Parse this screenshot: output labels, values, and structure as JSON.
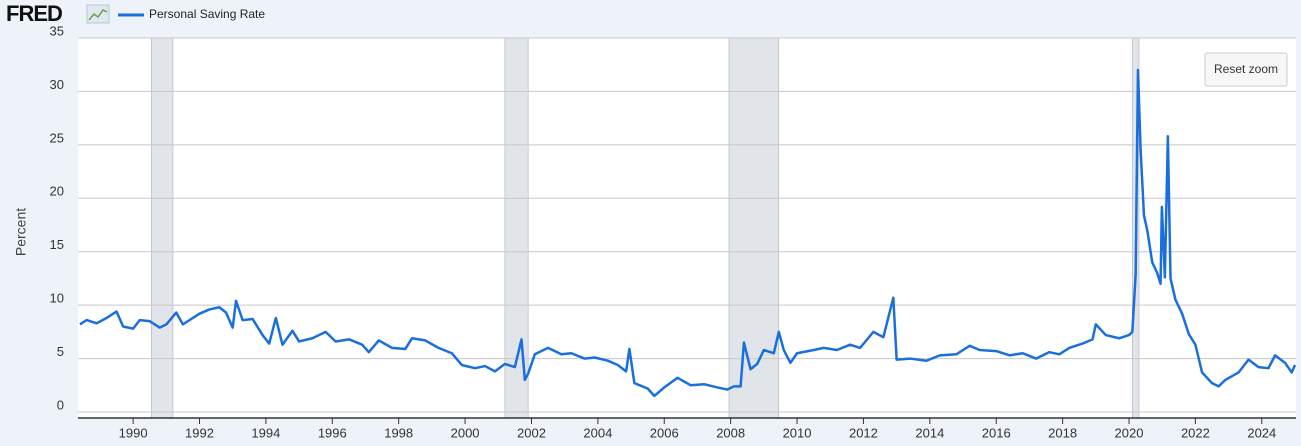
{
  "logo": "FRED",
  "button": "Reset zoom",
  "chart_data": {
    "type": "line",
    "ylabel": "Percent",
    "xlim": [
      1988.34,
      2025.03
    ],
    "ylim": [
      0,
      35
    ],
    "xticks": [
      1990,
      1992,
      1994,
      1996,
      1998,
      2000,
      2002,
      2004,
      2006,
      2008,
      2010,
      2012,
      2014,
      2016,
      2018,
      2020,
      2022,
      2024
    ],
    "yticks": [
      0,
      5,
      10,
      15,
      20,
      25,
      30,
      35
    ],
    "grid": true,
    "recessions": [
      [
        1990.55,
        1991.2
      ],
      [
        2001.2,
        2001.9
      ],
      [
        2007.95,
        2009.45
      ],
      [
        2020.1,
        2020.3
      ]
    ],
    "recession_color": "#e1e5ea",
    "x": [
      1988.4,
      1988.6,
      1988.9,
      1989.2,
      1989.5,
      1989.7,
      1990.0,
      1990.2,
      1990.5,
      1990.8,
      1991.0,
      1991.3,
      1991.5,
      1991.8,
      1992.0,
      1992.3,
      1992.6,
      1992.8,
      1993.0,
      1993.1,
      1993.3,
      1993.6,
      1993.9,
      1994.1,
      1994.3,
      1994.5,
      1994.8,
      1995.0,
      1995.4,
      1995.8,
      1996.1,
      1996.5,
      1996.9,
      1997.1,
      1997.4,
      1997.8,
      1998.2,
      1998.4,
      1998.8,
      1999.2,
      1999.6,
      1999.9,
      2000.3,
      2000.6,
      2000.9,
      2001.2,
      2001.5,
      2001.7,
      2001.8,
      2001.9,
      2002.1,
      2002.5,
      2002.9,
      2003.2,
      2003.6,
      2003.9,
      2004.3,
      2004.6,
      2004.85,
      2004.95,
      2005.1,
      2005.5,
      2005.7,
      2006.0,
      2006.4,
      2006.8,
      2007.2,
      2007.6,
      2007.9,
      2008.1,
      2008.3,
      2008.4,
      2008.6,
      2008.8,
      2009.0,
      2009.3,
      2009.45,
      2009.6,
      2009.8,
      2010.0,
      2010.5,
      2010.8,
      2011.2,
      2011.6,
      2011.9,
      2012.3,
      2012.6,
      2012.9,
      2013.0,
      2013.4,
      2013.9,
      2014.3,
      2014.8,
      2015.2,
      2015.5,
      2016.0,
      2016.4,
      2016.8,
      2017.2,
      2017.6,
      2017.9,
      2018.2,
      2018.6,
      2018.9,
      2019.0,
      2019.3,
      2019.7,
      2020.0,
      2020.1,
      2020.2,
      2020.27,
      2020.35,
      2020.45,
      2020.55,
      2020.7,
      2020.85,
      2020.95,
      2020.99,
      2021.08,
      2021.17,
      2021.25,
      2021.4,
      2021.6,
      2021.8,
      2022.0,
      2022.2,
      2022.5,
      2022.7,
      2022.9,
      2023.3,
      2023.6,
      2023.9,
      2024.2,
      2024.4,
      2024.7,
      2024.9,
      2025.0
    ],
    "series": [
      {
        "name": "Personal Saving Rate",
        "color": "#1a6fdc",
        "values": [
          8.2,
          8.6,
          8.3,
          8.8,
          9.4,
          8.0,
          7.8,
          8.6,
          8.5,
          7.9,
          8.2,
          9.3,
          8.2,
          8.8,
          9.2,
          9.6,
          9.8,
          9.3,
          7.9,
          10.4,
          8.6,
          8.7,
          7.2,
          6.4,
          8.8,
          6.3,
          7.6,
          6.6,
          6.9,
          7.5,
          6.6,
          6.8,
          6.3,
          5.6,
          6.7,
          6.0,
          5.9,
          6.9,
          6.7,
          6.0,
          5.5,
          4.4,
          4.1,
          4.3,
          3.8,
          4.5,
          4.2,
          6.8,
          3.0,
          3.6,
          5.4,
          6.0,
          5.4,
          5.5,
          5.0,
          5.1,
          4.8,
          4.4,
          3.8,
          5.9,
          2.7,
          2.2,
          1.5,
          2.3,
          3.2,
          2.5,
          2.6,
          2.3,
          2.1,
          2.4,
          2.4,
          6.5,
          4.0,
          4.5,
          5.8,
          5.5,
          7.5,
          5.8,
          4.6,
          5.5,
          5.8,
          6.0,
          5.8,
          6.3,
          6.0,
          7.5,
          7.0,
          10.7,
          4.9,
          5.0,
          4.8,
          5.3,
          5.4,
          6.2,
          5.8,
          5.7,
          5.3,
          5.5,
          5.0,
          5.6,
          5.4,
          6.0,
          6.4,
          6.8,
          8.2,
          7.2,
          6.9,
          7.2,
          7.5,
          12.9,
          32.0,
          24.5,
          18.4,
          17.0,
          14.0,
          13.0,
          12.0,
          19.2,
          12.6,
          25.8,
          12.5,
          10.5,
          9.2,
          7.3,
          6.3,
          3.7,
          2.7,
          2.4,
          3.0,
          3.7,
          4.9,
          4.2,
          4.1,
          5.3,
          4.6,
          3.7,
          4.4
        ]
      }
    ]
  }
}
